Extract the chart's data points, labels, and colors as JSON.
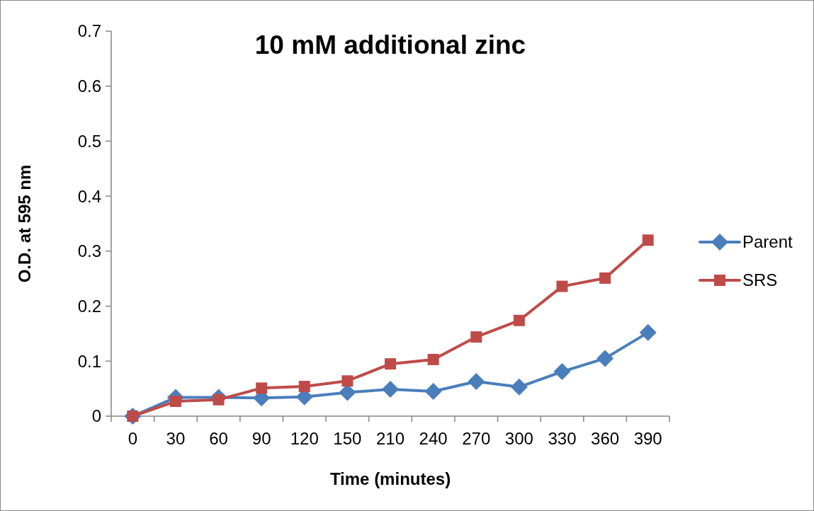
{
  "chart_data": {
    "type": "line",
    "title": "10 mM additional zinc",
    "xlabel": "Time (minutes)",
    "ylabel": "O.D. at 595 nm",
    "categories": [
      "0",
      "30",
      "60",
      "90",
      "120",
      "150",
      "210",
      "240",
      "270",
      "300",
      "330",
      "360",
      "390"
    ],
    "series": [
      {
        "name": "Parent",
        "color": "#4a7ebb",
        "marker": "diamond",
        "values": [
          0,
          0.034,
          0.034,
          0.033,
          0.035,
          0.043,
          0.049,
          0.045,
          0.063,
          0.053,
          0.081,
          0.105,
          0.152
        ]
      },
      {
        "name": "SRS",
        "color": "#be4b48",
        "marker": "square",
        "values": [
          0,
          0.027,
          0.03,
          0.051,
          0.054,
          0.064,
          0.095,
          0.103,
          0.144,
          0.174,
          0.236,
          0.251,
          0.32
        ]
      }
    ],
    "ylim": [
      0,
      0.7
    ],
    "yticks": [
      0,
      0.1,
      0.2,
      0.3,
      0.4,
      0.5,
      0.6,
      0.7
    ],
    "grid": false,
    "legend": "right",
    "line_style": "solid"
  }
}
